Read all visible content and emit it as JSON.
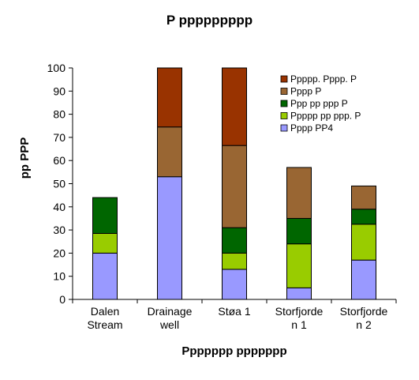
{
  "chart_data": {
    "type": "bar",
    "stacked": true,
    "title": "P ppppppppp",
    "xlabel": "Ppppppp ppppppp",
    "ylabel": "pp PPP",
    "ylim": [
      0,
      100
    ],
    "yticks": [
      0,
      10,
      20,
      30,
      40,
      50,
      60,
      70,
      80,
      90,
      100
    ],
    "grid": false,
    "legend_position": "top-right",
    "categories": [
      [
        "Dalen",
        "Stream"
      ],
      [
        "Drainage",
        "well"
      ],
      [
        "Støa 1"
      ],
      [
        "Storfjorde",
        "n 1"
      ],
      [
        "Storfjorde",
        "n 2"
      ]
    ],
    "series": [
      {
        "name": "Pppp PP4",
        "color": "#9999ff",
        "values": [
          20,
          53,
          13,
          5,
          17
        ]
      },
      {
        "name": "Ppppp pp ppp. P",
        "color": "#99cc00",
        "values": [
          8.5,
          0,
          7,
          19,
          15.5
        ]
      },
      {
        "name": "Ppp pp ppp P",
        "color": "#006600",
        "values": [
          15.5,
          0,
          11,
          11,
          6.5
        ]
      },
      {
        "name": "Pppp P",
        "color": "#996633",
        "values": [
          0,
          21.5,
          35.5,
          22,
          10
        ]
      },
      {
        "name": "Ppppp. Pppp. P",
        "color": "#993300",
        "values": [
          0,
          25.5,
          33.5,
          0,
          0
        ]
      }
    ]
  }
}
